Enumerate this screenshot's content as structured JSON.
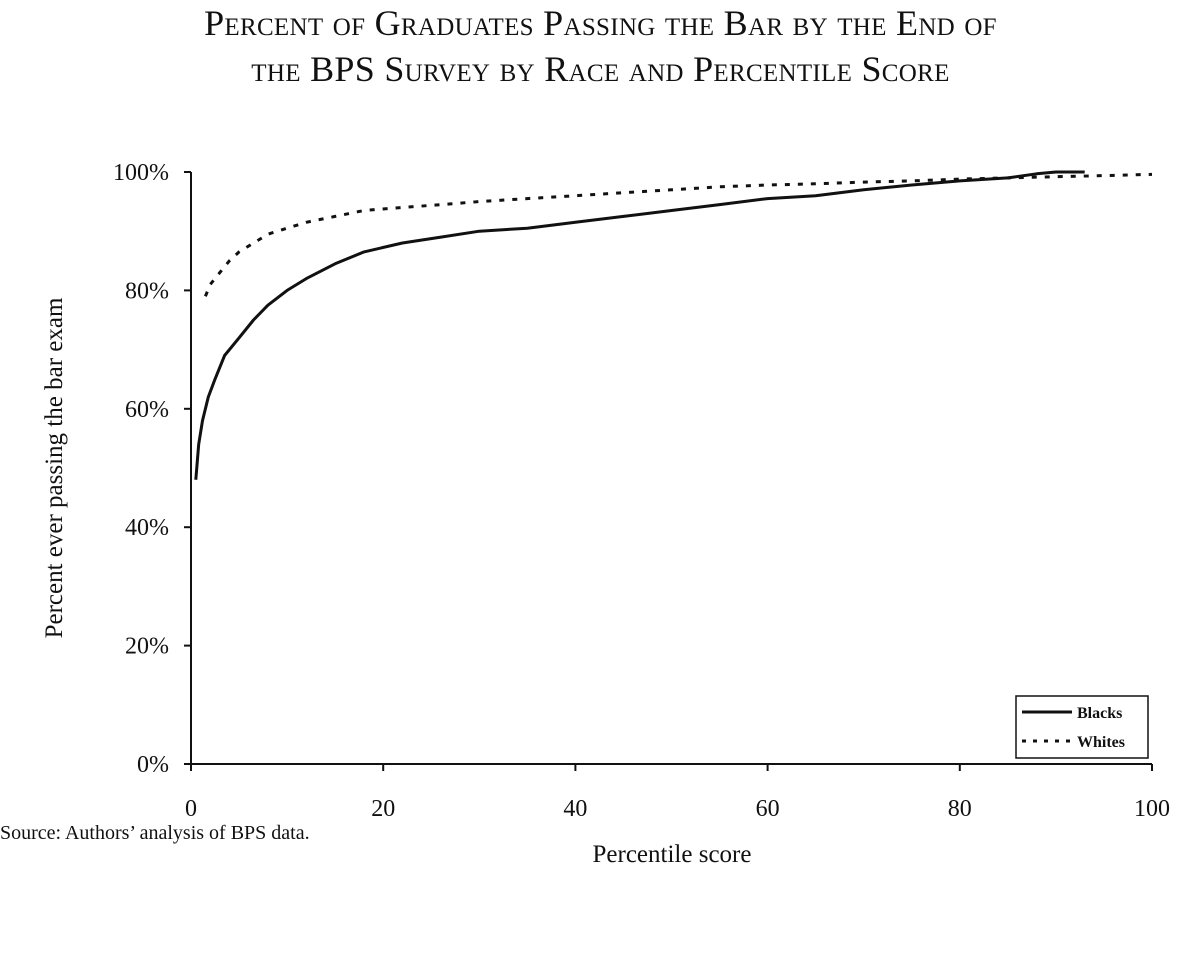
{
  "title_lines": [
    "Percent of Graduates Passing the Bar by the End of",
    "the BPS Survey by Race and Percentile Score"
  ],
  "source_note": "Source: Authors’ analysis of BPS data.",
  "chart_data": {
    "type": "line",
    "title": "Percent of Graduates Passing the Bar by the End of the BPS Survey by Race and Percentile Score",
    "xlabel": "Percentile score",
    "ylabel": "Percent ever passing the bar exam",
    "xlim": [
      0,
      100
    ],
    "ylim": [
      0,
      1
    ],
    "x_ticks": [
      0,
      20,
      40,
      60,
      80,
      100
    ],
    "y_ticks": [
      0,
      0.2,
      0.4,
      0.6,
      0.8,
      1.0
    ],
    "x_tick_labels": [
      "0",
      "20",
      "40",
      "60",
      "80",
      "100"
    ],
    "y_tick_labels": [
      "0%",
      "20%",
      "40%",
      "60%",
      "80%",
      "100%"
    ],
    "grid": false,
    "legend_position": "bottom-right",
    "series": [
      {
        "name": "Blacks",
        "style": "solid",
        "color": "#111111",
        "x": [
          0.5,
          0.8,
          1.2,
          1.8,
          2.5,
          3.5,
          5,
          6.5,
          8,
          10,
          12,
          15,
          18,
          22,
          26,
          30,
          35,
          40,
          45,
          50,
          55,
          60,
          65,
          70,
          75,
          80,
          85,
          88,
          90,
          93
        ],
        "y": [
          0.48,
          0.54,
          0.58,
          0.62,
          0.65,
          0.69,
          0.72,
          0.75,
          0.775,
          0.8,
          0.82,
          0.845,
          0.865,
          0.88,
          0.89,
          0.9,
          0.905,
          0.915,
          0.925,
          0.935,
          0.945,
          0.955,
          0.96,
          0.97,
          0.978,
          0.985,
          0.99,
          0.997,
          1.0,
          1.0
        ]
      },
      {
        "name": "Whites",
        "style": "dotted",
        "color": "#111111",
        "x": [
          1.5,
          2,
          3,
          4,
          5,
          6,
          8,
          10,
          12,
          15,
          18,
          22,
          26,
          30,
          35,
          40,
          45,
          50,
          55,
          60,
          65,
          70,
          75,
          80,
          85,
          90,
          95,
          100
        ],
        "y": [
          0.79,
          0.81,
          0.83,
          0.85,
          0.865,
          0.875,
          0.895,
          0.905,
          0.915,
          0.925,
          0.935,
          0.94,
          0.945,
          0.95,
          0.955,
          0.96,
          0.965,
          0.97,
          0.975,
          0.978,
          0.98,
          0.983,
          0.985,
          0.988,
          0.99,
          0.992,
          0.994,
          0.996
        ]
      }
    ]
  }
}
